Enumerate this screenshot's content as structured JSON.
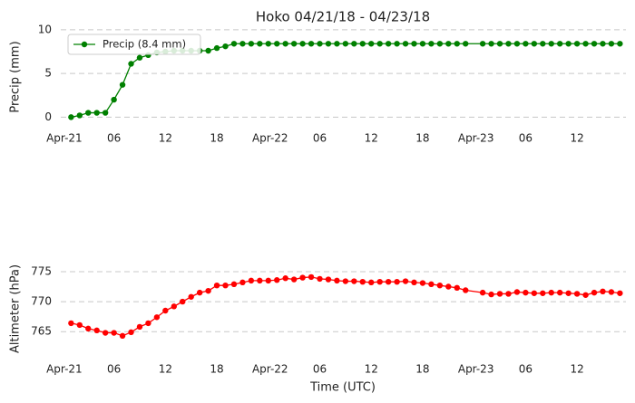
{
  "chart_data": [
    {
      "type": "line",
      "title": "Hoko 04/21/18 - 04/23/18",
      "ylabel": "Precip (mm)",
      "x": [
        1,
        2,
        3,
        4,
        5,
        6,
        7,
        8,
        9,
        10,
        11,
        12,
        13,
        14,
        15,
        16,
        17,
        18,
        19,
        20,
        21,
        22,
        23,
        24,
        25,
        26,
        27,
        28,
        29,
        30,
        31,
        32,
        33,
        34,
        35,
        36,
        37,
        38,
        39,
        40,
        41,
        42,
        43,
        44,
        45,
        46,
        47,
        49,
        50,
        51,
        52,
        53,
        54,
        55,
        56,
        57,
        58,
        59,
        60,
        61,
        62,
        63,
        64,
        65
      ],
      "series": [
        {
          "name": "Precip (8.4 mm)",
          "color": "#008000",
          "values": [
            0,
            0.2,
            0.5,
            0.5,
            0.5,
            2.0,
            3.7,
            6.1,
            6.8,
            7.1,
            7.4,
            7.5,
            7.6,
            7.6,
            7.6,
            7.6,
            7.6,
            7.9,
            8.1,
            8.4,
            8.4,
            8.4,
            8.4,
            8.4,
            8.4,
            8.4,
            8.4,
            8.4,
            8.4,
            8.4,
            8.4,
            8.4,
            8.4,
            8.4,
            8.4,
            8.4,
            8.4,
            8.4,
            8.4,
            8.4,
            8.4,
            8.4,
            8.4,
            8.4,
            8.4,
            8.4,
            8.4,
            8.4,
            8.4,
            8.4,
            8.4,
            8.4,
            8.4,
            8.4,
            8.4,
            8.4,
            8.4,
            8.4,
            8.4,
            8.4,
            8.4,
            8.4,
            8.4,
            8.4
          ]
        }
      ],
      "xlim": [
        -0.2,
        65.7
      ],
      "xticks": [
        {
          "value": 0,
          "label": "Apr-21"
        },
        {
          "value": 6,
          "label": "06"
        },
        {
          "value": 12,
          "label": "12"
        },
        {
          "value": 18,
          "label": "18"
        },
        {
          "value": 24,
          "label": "Apr-22"
        },
        {
          "value": 30,
          "label": "06"
        },
        {
          "value": 36,
          "label": "12"
        },
        {
          "value": 42,
          "label": "18"
        },
        {
          "value": 48,
          "label": "Apr-23"
        },
        {
          "value": 54,
          "label": "06"
        },
        {
          "value": 60,
          "label": "12"
        }
      ],
      "ylim": [
        -1.1,
        10.5
      ],
      "yticks": [
        0,
        5,
        10
      ],
      "grid": true,
      "legend": "upper-left"
    },
    {
      "type": "line",
      "ylabel": "Altimeter (hPa)",
      "xlabel": "Time (UTC)",
      "color": "#ff0000",
      "x": [
        1,
        2,
        3,
        4,
        5,
        6,
        7,
        8,
        9,
        10,
        11,
        12,
        13,
        14,
        15,
        16,
        17,
        18,
        19,
        20,
        21,
        22,
        23,
        24,
        25,
        26,
        27,
        28,
        29,
        30,
        31,
        32,
        33,
        34,
        35,
        36,
        37,
        38,
        39,
        40,
        41,
        42,
        43,
        44,
        45,
        46,
        47,
        49,
        50,
        51,
        52,
        53,
        54,
        55,
        56,
        57,
        58,
        59,
        60,
        61,
        62,
        63,
        64,
        65
      ],
      "values": [
        766.4,
        766.1,
        765.5,
        765.2,
        764.8,
        764.8,
        764.3,
        764.9,
        765.8,
        766.4,
        767.4,
        768.5,
        769.2,
        770.0,
        770.8,
        771.5,
        771.8,
        772.7,
        772.7,
        772.9,
        773.2,
        773.5,
        773.5,
        773.5,
        773.6,
        773.9,
        773.7,
        774.0,
        774.1,
        773.8,
        773.7,
        773.5,
        773.4,
        773.4,
        773.3,
        773.2,
        773.3,
        773.3,
        773.3,
        773.4,
        773.2,
        773.1,
        772.9,
        772.7,
        772.5,
        772.3,
        771.9,
        771.5,
        771.2,
        771.3,
        771.3,
        771.6,
        771.5,
        771.4,
        771.4,
        771.5,
        771.5,
        771.4,
        771.3,
        771.1,
        771.5,
        771.7,
        771.6,
        771.4
      ],
      "xlim": [
        -0.2,
        65.7
      ],
      "xticks": [
        {
          "value": 0,
          "label": "Apr-21"
        },
        {
          "value": 6,
          "label": "06"
        },
        {
          "value": 12,
          "label": "12"
        },
        {
          "value": 18,
          "label": "18"
        },
        {
          "value": 24,
          "label": "Apr-22"
        },
        {
          "value": 30,
          "label": "06"
        },
        {
          "value": 36,
          "label": "12"
        },
        {
          "value": 42,
          "label": "18"
        },
        {
          "value": 48,
          "label": "Apr-23"
        },
        {
          "value": 54,
          "label": "06"
        },
        {
          "value": 60,
          "label": "12"
        }
      ],
      "ylim": [
        760.5,
        776.5
      ],
      "yticks": [
        765,
        770,
        775
      ],
      "grid": true
    }
  ]
}
